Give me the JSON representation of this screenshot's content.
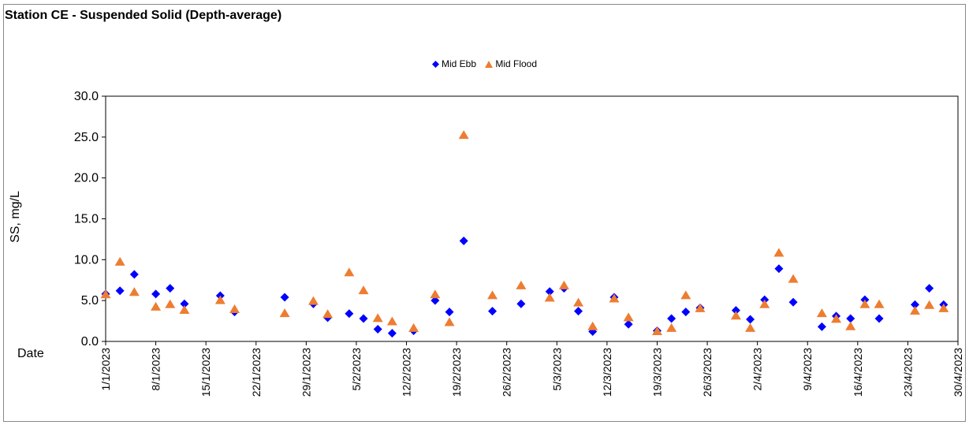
{
  "chart_data": {
    "type": "scatter",
    "title": "Station CE - Suspended Solid (Depth-average)",
    "xlabel": "Date",
    "ylabel": "SS, mg/L",
    "ylim": [
      0,
      30
    ],
    "yticks": [
      "0.0",
      "5.0",
      "10.0",
      "15.0",
      "20.0",
      "25.0",
      "30.0"
    ],
    "xticks": [
      "1/1/2023",
      "8/1/2023",
      "15/1/2023",
      "22/1/2023",
      "29/1/2023",
      "5/2/2023",
      "12/2/2023",
      "19/2/2023",
      "26/2/2023",
      "5/3/2023",
      "12/3/2023",
      "19/3/2023",
      "26/3/2023",
      "2/4/2023",
      "9/4/2023",
      "16/4/2023",
      "23/4/2023",
      "30/4/2023"
    ],
    "legend_position": "top-center",
    "grid": false,
    "series": [
      {
        "name": "Mid Ebb",
        "color": "#0000FF",
        "marker": "diamond",
        "x": [
          "1/1/2023",
          "3/1/2023",
          "5/1/2023",
          "8/1/2023",
          "10/1/2023",
          "12/1/2023",
          "17/1/2023",
          "19/1/2023",
          "26/1/2023",
          "30/1/2023",
          "1/2/2023",
          "4/2/2023",
          "6/2/2023",
          "8/2/2023",
          "10/2/2023",
          "13/2/2023",
          "16/2/2023",
          "18/2/2023",
          "20/2/2023",
          "24/2/2023",
          "28/2/2023",
          "4/3/2023",
          "6/3/2023",
          "8/3/2023",
          "10/3/2023",
          "13/3/2023",
          "15/3/2023",
          "19/3/2023",
          "21/3/2023",
          "23/3/2023",
          "25/3/2023",
          "30/3/2023",
          "1/4/2023",
          "3/4/2023",
          "5/4/2023",
          "7/4/2023",
          "11/4/2023",
          "13/4/2023",
          "15/4/2023",
          "17/4/2023",
          "19/4/2023",
          "24/4/2023",
          "26/4/2023",
          "28/4/2023"
        ],
        "y": [
          5.8,
          6.2,
          8.2,
          5.8,
          6.5,
          4.6,
          5.6,
          3.6,
          5.4,
          4.6,
          2.9,
          3.4,
          2.8,
          1.5,
          1.0,
          1.3,
          5.0,
          3.6,
          12.3,
          3.7,
          4.6,
          6.1,
          6.5,
          3.7,
          1.2,
          5.4,
          2.1,
          1.3,
          2.8,
          3.6,
          4.1,
          3.8,
          2.7,
          5.1,
          8.9,
          4.8,
          1.8,
          3.1,
          2.8,
          5.1,
          2.8,
          4.5,
          6.5,
          4.5
        ]
      },
      {
        "name": "Mid Flood",
        "color": "#ED7D31",
        "marker": "triangle",
        "x": [
          "1/1/2023",
          "3/1/2023",
          "5/1/2023",
          "8/1/2023",
          "10/1/2023",
          "12/1/2023",
          "17/1/2023",
          "19/1/2023",
          "26/1/2023",
          "30/1/2023",
          "1/2/2023",
          "4/2/2023",
          "6/2/2023",
          "8/2/2023",
          "10/2/2023",
          "13/2/2023",
          "16/2/2023",
          "18/2/2023",
          "20/2/2023",
          "24/2/2023",
          "28/2/2023",
          "4/3/2023",
          "6/3/2023",
          "8/3/2023",
          "10/3/2023",
          "13/3/2023",
          "15/3/2023",
          "19/3/2023",
          "21/3/2023",
          "23/3/2023",
          "25/3/2023",
          "30/3/2023",
          "1/4/2023",
          "3/4/2023",
          "5/4/2023",
          "7/4/2023",
          "11/4/2023",
          "13/4/2023",
          "15/4/2023",
          "17/4/2023",
          "19/4/2023",
          "24/4/2023",
          "26/4/2023",
          "28/4/2023"
        ],
        "y": [
          5.7,
          9.7,
          6.0,
          4.2,
          4.5,
          3.8,
          5.0,
          3.9,
          3.4,
          4.9,
          3.3,
          8.4,
          6.2,
          2.8,
          2.4,
          1.6,
          5.7,
          2.3,
          25.2,
          5.6,
          6.8,
          5.3,
          6.8,
          4.7,
          1.8,
          5.2,
          2.9,
          1.2,
          1.6,
          5.6,
          4.0,
          3.1,
          1.6,
          4.5,
          10.8,
          7.6,
          3.4,
          2.7,
          1.8,
          4.5,
          4.5,
          3.7,
          4.4,
          4.0
        ]
      }
    ]
  }
}
